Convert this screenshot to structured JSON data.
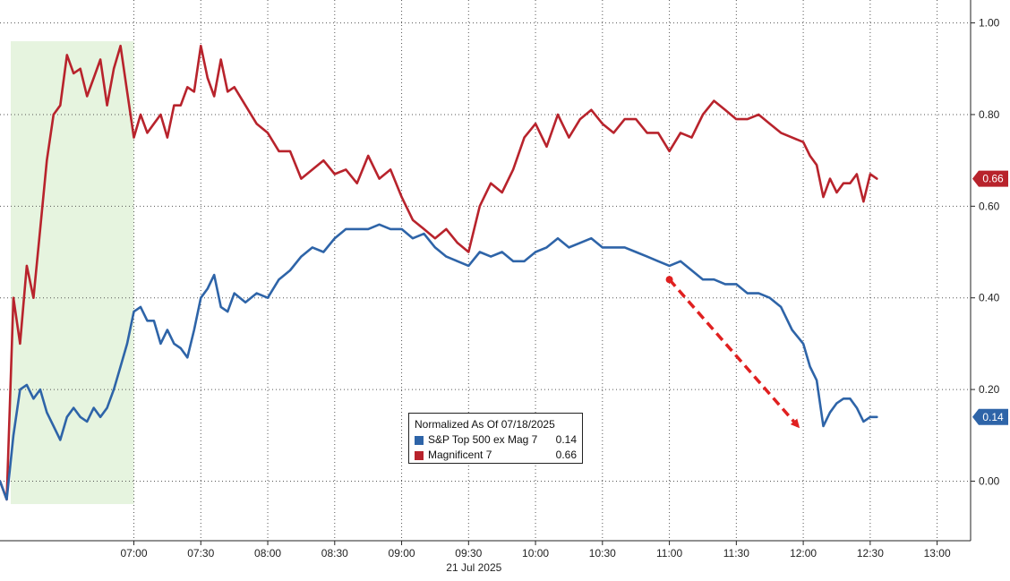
{
  "chart_data": {
    "type": "line",
    "title": "",
    "date_label": "21 Jul 2025",
    "x_ticks": [
      "07:00",
      "07:30",
      "08:00",
      "08:30",
      "09:00",
      "09:30",
      "10:00",
      "10:30",
      "11:00",
      "11:30",
      "12:00",
      "12:30",
      "13:00"
    ],
    "y_ticks": [
      "0.00",
      "0.20",
      "0.40",
      "0.60",
      "0.80",
      "1.00"
    ],
    "ylim": [
      -0.13,
      1.05
    ],
    "xlim": [
      "06:00",
      "13:15"
    ],
    "grid": true,
    "legend": {
      "title": "Normalized As Of 07/18/2025",
      "placement": "bottom-center"
    },
    "highlight_region": {
      "from": "06:00",
      "to": "07:00",
      "color": "#e6f4df"
    },
    "annotation_arrow": {
      "from": {
        "x": "11:00",
        "y": 0.44
      },
      "to": {
        "x": "12:00",
        "y": 0.12
      },
      "color": "#e02020"
    },
    "series": [
      {
        "name": "S&P Top 500 ex Mag 7",
        "last_value": "0.14",
        "color": "#2e64a8",
        "x": [
          "06:00",
          "06:03",
          "06:06",
          "06:09",
          "06:12",
          "06:15",
          "06:18",
          "06:21",
          "06:24",
          "06:27",
          "06:30",
          "06:33",
          "06:36",
          "06:39",
          "06:42",
          "06:45",
          "06:48",
          "06:51",
          "06:54",
          "06:57",
          "07:00",
          "07:03",
          "07:06",
          "07:09",
          "07:12",
          "07:15",
          "07:18",
          "07:21",
          "07:24",
          "07:27",
          "07:30",
          "07:33",
          "07:36",
          "07:39",
          "07:42",
          "07:45",
          "07:50",
          "07:55",
          "08:00",
          "08:05",
          "08:10",
          "08:15",
          "08:20",
          "08:25",
          "08:30",
          "08:35",
          "08:40",
          "08:45",
          "08:50",
          "08:55",
          "09:00",
          "09:05",
          "09:10",
          "09:15",
          "09:20",
          "09:25",
          "09:30",
          "09:35",
          "09:40",
          "09:45",
          "09:50",
          "09:55",
          "10:00",
          "10:05",
          "10:10",
          "10:15",
          "10:20",
          "10:25",
          "10:30",
          "10:35",
          "10:40",
          "10:45",
          "10:50",
          "10:55",
          "11:00",
          "11:05",
          "11:10",
          "11:15",
          "11:20",
          "11:25",
          "11:30",
          "11:35",
          "11:40",
          "11:45",
          "11:50",
          "11:55",
          "12:00",
          "12:03",
          "12:06",
          "12:09",
          "12:12",
          "12:15",
          "12:18",
          "12:21",
          "12:24",
          "12:27",
          "12:30",
          "12:33"
        ],
        "values": [
          0.0,
          -0.04,
          0.1,
          0.2,
          0.21,
          0.18,
          0.2,
          0.15,
          0.12,
          0.09,
          0.14,
          0.16,
          0.14,
          0.13,
          0.16,
          0.14,
          0.16,
          0.2,
          0.25,
          0.3,
          0.37,
          0.38,
          0.35,
          0.35,
          0.3,
          0.33,
          0.3,
          0.29,
          0.27,
          0.33,
          0.4,
          0.42,
          0.45,
          0.38,
          0.37,
          0.41,
          0.39,
          0.41,
          0.4,
          0.44,
          0.46,
          0.49,
          0.51,
          0.5,
          0.53,
          0.55,
          0.55,
          0.55,
          0.56,
          0.55,
          0.55,
          0.53,
          0.54,
          0.51,
          0.49,
          0.48,
          0.47,
          0.5,
          0.49,
          0.5,
          0.48,
          0.48,
          0.5,
          0.51,
          0.53,
          0.51,
          0.52,
          0.53,
          0.51,
          0.51,
          0.51,
          0.5,
          0.49,
          0.48,
          0.47,
          0.48,
          0.46,
          0.44,
          0.44,
          0.43,
          0.43,
          0.41,
          0.41,
          0.4,
          0.38,
          0.33,
          0.3,
          0.25,
          0.22,
          0.12,
          0.15,
          0.17,
          0.18,
          0.18,
          0.16,
          0.13,
          0.14,
          0.14
        ]
      },
      {
        "name": "Magnificent 7",
        "last_value": "0.66",
        "color": "#b8232c",
        "x": [
          "06:00",
          "06:03",
          "06:06",
          "06:09",
          "06:12",
          "06:15",
          "06:18",
          "06:21",
          "06:24",
          "06:27",
          "06:30",
          "06:33",
          "06:36",
          "06:39",
          "06:42",
          "06:45",
          "06:48",
          "06:51",
          "06:54",
          "06:57",
          "07:00",
          "07:03",
          "07:06",
          "07:09",
          "07:12",
          "07:15",
          "07:18",
          "07:21",
          "07:24",
          "07:27",
          "07:30",
          "07:33",
          "07:36",
          "07:39",
          "07:42",
          "07:45",
          "07:50",
          "07:55",
          "08:00",
          "08:05",
          "08:10",
          "08:15",
          "08:20",
          "08:25",
          "08:30",
          "08:35",
          "08:40",
          "08:45",
          "08:50",
          "08:55",
          "09:00",
          "09:05",
          "09:10",
          "09:15",
          "09:20",
          "09:25",
          "09:30",
          "09:35",
          "09:40",
          "09:45",
          "09:50",
          "09:55",
          "10:00",
          "10:05",
          "10:10",
          "10:15",
          "10:20",
          "10:25",
          "10:30",
          "10:35",
          "10:40",
          "10:45",
          "10:50",
          "10:55",
          "11:00",
          "11:05",
          "11:10",
          "11:15",
          "11:20",
          "11:25",
          "11:30",
          "11:35",
          "11:40",
          "11:45",
          "11:50",
          "11:55",
          "12:00",
          "12:03",
          "12:06",
          "12:09",
          "12:12",
          "12:15",
          "12:18",
          "12:21",
          "12:24",
          "12:27",
          "12:30",
          "12:33"
        ],
        "values": [
          0.0,
          -0.04,
          0.4,
          0.3,
          0.47,
          0.4,
          0.55,
          0.7,
          0.8,
          0.82,
          0.93,
          0.89,
          0.9,
          0.84,
          0.88,
          0.92,
          0.82,
          0.9,
          0.95,
          0.85,
          0.75,
          0.8,
          0.76,
          0.78,
          0.8,
          0.75,
          0.82,
          0.82,
          0.86,
          0.85,
          0.95,
          0.88,
          0.84,
          0.92,
          0.85,
          0.86,
          0.82,
          0.78,
          0.76,
          0.72,
          0.72,
          0.66,
          0.68,
          0.7,
          0.67,
          0.68,
          0.65,
          0.71,
          0.66,
          0.68,
          0.62,
          0.57,
          0.55,
          0.53,
          0.55,
          0.52,
          0.5,
          0.6,
          0.65,
          0.63,
          0.68,
          0.75,
          0.78,
          0.73,
          0.8,
          0.75,
          0.79,
          0.81,
          0.78,
          0.76,
          0.79,
          0.79,
          0.76,
          0.76,
          0.72,
          0.76,
          0.75,
          0.8,
          0.83,
          0.81,
          0.79,
          0.79,
          0.8,
          0.78,
          0.76,
          0.75,
          0.74,
          0.71,
          0.69,
          0.62,
          0.66,
          0.63,
          0.65,
          0.65,
          0.67,
          0.61,
          0.67,
          0.66
        ]
      }
    ]
  }
}
